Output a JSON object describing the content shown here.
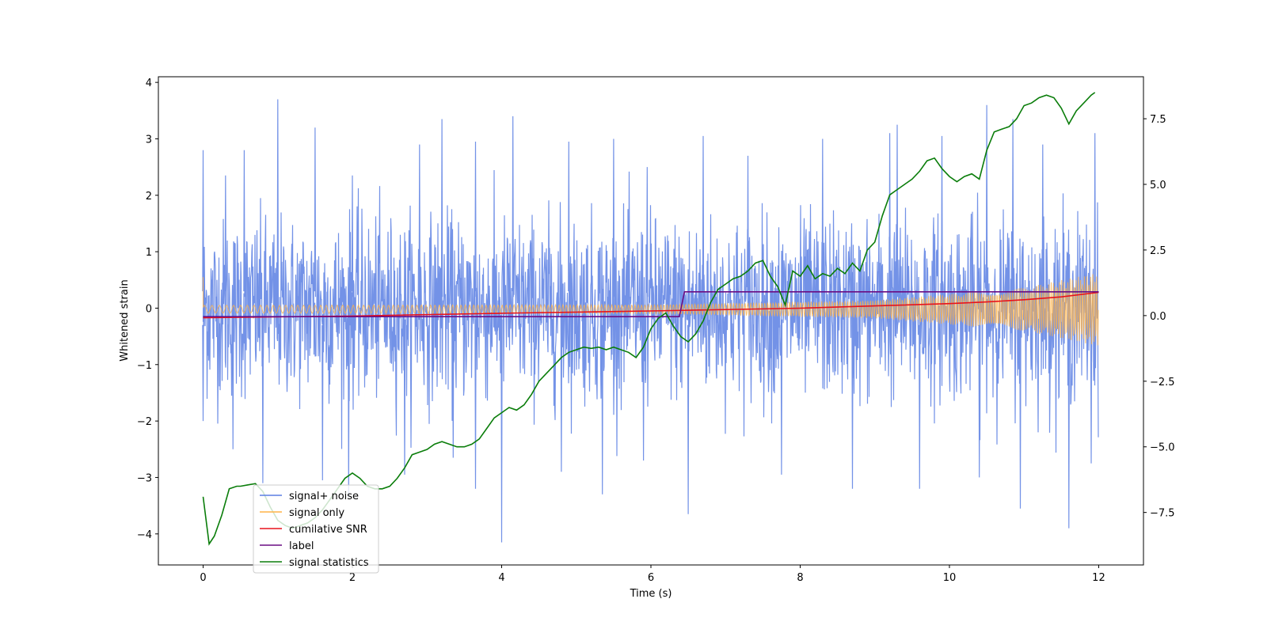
{
  "chart_data": {
    "type": "line",
    "title": "",
    "xlabel": "Time (s)",
    "ylabel": "Whitened strain",
    "y2label": "",
    "xlim": [
      -0.6,
      12.6
    ],
    "ylim": [
      -4.55,
      4.1
    ],
    "y2lim": [
      -9.5,
      9.1
    ],
    "x_ticks": [
      0,
      2,
      4,
      6,
      8,
      10,
      12
    ],
    "y_ticks": [
      -4,
      -3,
      -2,
      -1,
      0,
      1,
      2,
      3,
      4
    ],
    "y2_ticks": [
      -7.5,
      -5.0,
      -2.5,
      0.0,
      2.5,
      5.0,
      7.5
    ],
    "x_tick_labels": [
      "0",
      "2",
      "4",
      "6",
      "8",
      "10",
      "12"
    ],
    "y_tick_labels": [
      "−4",
      "−3",
      "−2",
      "−1",
      "0",
      "1",
      "2",
      "3",
      "4"
    ],
    "y2_tick_labels": [
      "−7.5",
      "−5.0",
      "−2.5",
      "0.0",
      "2.5",
      "5.0",
      "7.5"
    ],
    "grid": false,
    "legend_position": "lower-left",
    "series": [
      {
        "name": "signal+ noise",
        "color": "#5b7fe3",
        "axis": "left",
        "kind": "noise-envelope",
        "time_range": [
          0,
          12
        ],
        "typical_abs_extent": 1.6,
        "peaks": [
          [
            0.0,
            2.8
          ],
          [
            0.3,
            2.35
          ],
          [
            0.55,
            2.8
          ],
          [
            1.0,
            3.7
          ],
          [
            1.5,
            3.2
          ],
          [
            2.0,
            2.35
          ],
          [
            2.9,
            2.9
          ],
          [
            3.2,
            3.35
          ],
          [
            3.65,
            2.95
          ],
          [
            4.15,
            3.4
          ],
          [
            4.9,
            2.95
          ],
          [
            5.5,
            3.0
          ],
          [
            5.95,
            2.5
          ],
          [
            6.7,
            3.05
          ],
          [
            7.3,
            2.7
          ],
          [
            8.3,
            3.0
          ],
          [
            9.2,
            3.1
          ],
          [
            9.3,
            3.25
          ],
          [
            9.9,
            3.05
          ],
          [
            10.5,
            3.6
          ],
          [
            10.85,
            3.35
          ],
          [
            11.25,
            2.9
          ],
          [
            11.95,
            3.1
          ]
        ],
        "troughs": [
          [
            0.0,
            -2.0
          ],
          [
            0.4,
            -2.5
          ],
          [
            0.8,
            -3.1
          ],
          [
            1.6,
            -3.05
          ],
          [
            1.95,
            -3.35
          ],
          [
            2.7,
            -2.95
          ],
          [
            3.35,
            -2.65
          ],
          [
            3.65,
            -3.2
          ],
          [
            4.0,
            -4.15
          ],
          [
            4.8,
            -2.9
          ],
          [
            5.35,
            -3.3
          ],
          [
            5.9,
            -2.7
          ],
          [
            6.5,
            -3.65
          ],
          [
            7.75,
            -2.95
          ],
          [
            8.7,
            -3.2
          ],
          [
            9.6,
            -3.2
          ],
          [
            10.4,
            -3.0
          ],
          [
            10.95,
            -3.55
          ],
          [
            11.6,
            -3.9
          ],
          [
            11.9,
            -2.75
          ]
        ]
      },
      {
        "name": "signal only",
        "color": "#ffb347",
        "axis": "left",
        "kind": "chirp",
        "initial_spike": 0.55,
        "amplitude": [
          [
            0,
            0.07
          ],
          [
            6,
            0.08
          ],
          [
            9,
            0.16
          ],
          [
            11,
            0.38
          ],
          [
            12,
            0.65
          ]
        ]
      },
      {
        "name": "cumilative SNR",
        "color": "#e8121b",
        "axis": "left",
        "x": [
          0,
          2,
          4,
          6,
          8,
          9,
          10,
          10.5,
          11,
          11.5,
          12
        ],
        "y": [
          -0.17,
          -0.14,
          -0.09,
          -0.05,
          0.0,
          0.04,
          0.08,
          0.11,
          0.15,
          0.2,
          0.28
        ]
      },
      {
        "name": "label",
        "color": "#6a0d83",
        "axis": "left",
        "x": [
          0,
          6.38,
          6.45,
          12
        ],
        "y": [
          -0.15,
          -0.15,
          0.29,
          0.29
        ]
      },
      {
        "name": "signal statistics",
        "color": "#0a7d0a",
        "axis": "right",
        "x": [
          0.0,
          0.08,
          0.15,
          0.25,
          0.35,
          0.45,
          0.5,
          0.6,
          0.7,
          0.8,
          0.9,
          1.0,
          1.1,
          1.2,
          1.3,
          1.4,
          1.5,
          1.6,
          1.7,
          1.8,
          1.9,
          2.0,
          2.1,
          2.2,
          2.3,
          2.4,
          2.5,
          2.6,
          2.7,
          2.8,
          2.9,
          3.0,
          3.1,
          3.2,
          3.3,
          3.4,
          3.5,
          3.6,
          3.7,
          3.8,
          3.9,
          4.0,
          4.1,
          4.2,
          4.3,
          4.4,
          4.5,
          4.6,
          4.7,
          4.8,
          4.9,
          5.0,
          5.1,
          5.2,
          5.3,
          5.4,
          5.5,
          5.6,
          5.7,
          5.8,
          5.9,
          6.0,
          6.1,
          6.2,
          6.3,
          6.4,
          6.5,
          6.6,
          6.7,
          6.8,
          6.9,
          7.0,
          7.1,
          7.2,
          7.3,
          7.4,
          7.5,
          7.6,
          7.7,
          7.8,
          7.9,
          8.0,
          8.1,
          8.2,
          8.3,
          8.4,
          8.5,
          8.6,
          8.7,
          8.8,
          8.9,
          9.0,
          9.1,
          9.2,
          9.3,
          9.4,
          9.5,
          9.6,
          9.7,
          9.8,
          9.9,
          10.0,
          10.1,
          10.2,
          10.3,
          10.4,
          10.5,
          10.6,
          10.7,
          10.8,
          10.9,
          11.0,
          11.1,
          11.2,
          11.3,
          11.4,
          11.5,
          11.6,
          11.7,
          11.8,
          11.9,
          11.95
        ],
        "y": [
          -6.9,
          -8.7,
          -8.4,
          -7.6,
          -6.6,
          -6.5,
          -6.5,
          -6.45,
          -6.4,
          -6.7,
          -7.3,
          -7.8,
          -8.0,
          -8.1,
          -8.0,
          -7.9,
          -7.7,
          -7.4,
          -7.0,
          -6.6,
          -6.2,
          -6.0,
          -6.2,
          -6.5,
          -6.6,
          -6.6,
          -6.5,
          -6.2,
          -5.8,
          -5.3,
          -5.2,
          -5.1,
          -4.9,
          -4.8,
          -4.9,
          -5.0,
          -5.0,
          -4.9,
          -4.7,
          -4.3,
          -3.9,
          -3.7,
          -3.5,
          -3.6,
          -3.4,
          -3.0,
          -2.5,
          -2.2,
          -1.9,
          -1.6,
          -1.4,
          -1.3,
          -1.2,
          -1.25,
          -1.2,
          -1.3,
          -1.2,
          -1.3,
          -1.4,
          -1.6,
          -1.2,
          -0.5,
          -0.1,
          0.1,
          -0.4,
          -0.8,
          -1.0,
          -0.7,
          -0.2,
          0.5,
          1.0,
          1.2,
          1.4,
          1.5,
          1.7,
          2.0,
          2.1,
          1.5,
          1.1,
          0.4,
          1.7,
          1.5,
          1.9,
          1.4,
          1.6,
          1.5,
          1.8,
          1.6,
          2.0,
          1.7,
          2.5,
          2.8,
          3.8,
          4.6,
          4.8,
          5.0,
          5.2,
          5.5,
          5.9,
          6.0,
          5.6,
          5.3,
          5.1,
          5.3,
          5.4,
          5.2,
          6.3,
          7.0,
          7.1,
          7.2,
          7.5,
          8.0,
          8.1,
          8.3,
          8.4,
          8.3,
          7.9,
          7.3,
          7.8,
          8.1,
          8.4,
          8.5
        ]
      }
    ]
  }
}
